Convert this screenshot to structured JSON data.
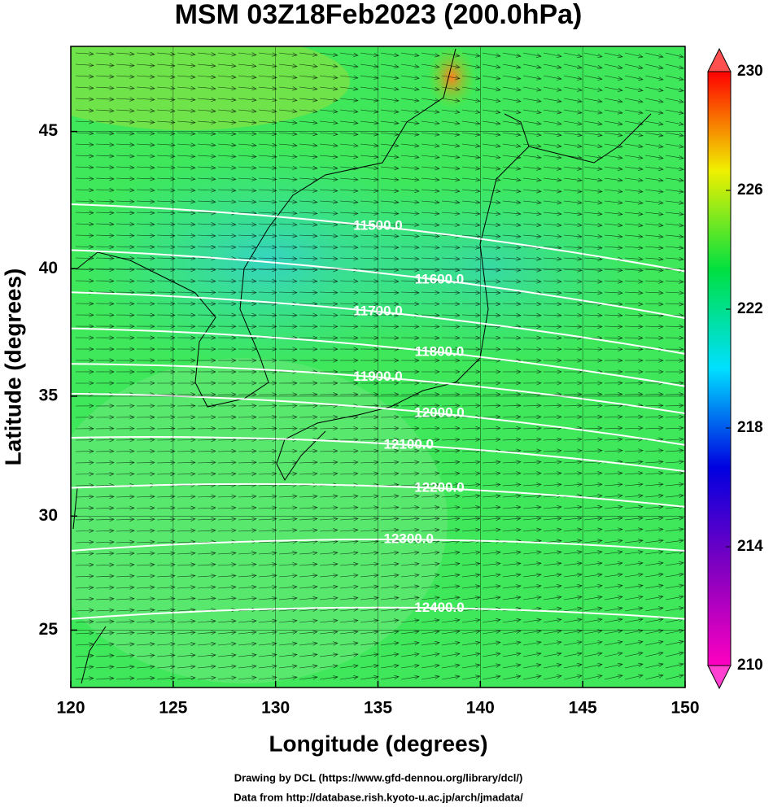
{
  "chart_data": {
    "type": "contour_map",
    "title": "MSM 03Z18Feb2023 (200.0hPa)",
    "x_label": "Longitude (degrees)",
    "y_label": "Latitude  (degrees)",
    "xlim": [
      120,
      150
    ],
    "xticks": [
      120,
      125,
      130,
      135,
      140,
      145,
      150
    ],
    "ylim": [
      22.4,
      47.9
    ],
    "yticks": [
      25,
      30,
      35,
      40,
      45
    ],
    "contours": [
      {
        "value": 11500,
        "label": "11500.0",
        "lat_west": 42.4,
        "lat_east": 39.9
      },
      {
        "value": 11600,
        "label": "11600.0",
        "lat_west": 40.7,
        "lat_east": 38.1
      },
      {
        "value": 11700,
        "label": "11700.0",
        "lat_west": 39.1,
        "lat_east": 36.7
      },
      {
        "value": 11800,
        "label": "11800.0",
        "lat_west": 37.7,
        "lat_east": 35.4
      },
      {
        "value": 11900,
        "label": "11900.0",
        "lat_west": 36.3,
        "lat_east": 34.3
      },
      {
        "value": 12000,
        "label": "12000.0",
        "lat_west": 35.1,
        "lat_east": 33.0
      },
      {
        "value": 12100,
        "label": "12100.0",
        "lat_west": 33.3,
        "lat_east": 31.9
      },
      {
        "value": 12200,
        "label": "12200.0",
        "lat_west": 31.2,
        "lat_east": 30.4
      },
      {
        "value": 12300,
        "label": "12300.0",
        "lat_west": 28.5,
        "lat_east": 28.5
      },
      {
        "value": 12400,
        "label": "12400.0",
        "lat_west": 25.5,
        "lat_east": 25.5
      }
    ],
    "colorbar": {
      "lim": [
        210,
        230
      ],
      "ticks": [
        210,
        214,
        218,
        222,
        226,
        230
      ],
      "colors": [
        "#ff00c0",
        "#8000c0",
        "#0000e0",
        "#00e0ff",
        "#00e040",
        "#f0f000",
        "#ff0000"
      ]
    },
    "footer": [
      "Drawing by DCL (https://www.gfd-dennou.org/library/dcl/)",
      "Data from http://database.rish.kyoto-u.ac.jp/arch/jmadata/"
    ]
  }
}
